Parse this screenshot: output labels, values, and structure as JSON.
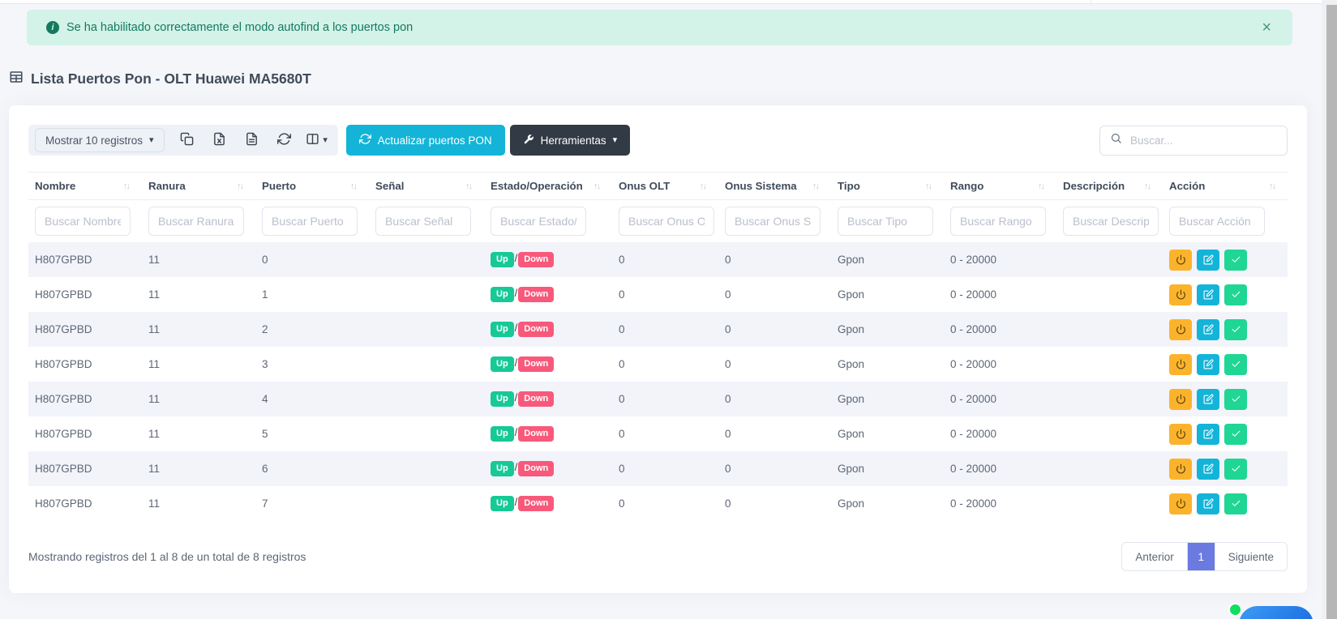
{
  "alert": {
    "message": "Se ha habilitado correctamente el modo autofind a los puertos pon"
  },
  "page_title": "Lista Puertos Pon - OLT Huawei MA5680T",
  "toolbar": {
    "length_menu_label": "Mostrar 10 registros",
    "icon_buttons": [
      {
        "name": "copy-button",
        "icon": "copy-icon"
      },
      {
        "name": "export-excel-button",
        "icon": "excel-file-icon"
      },
      {
        "name": "export-file-button",
        "icon": "file-text-icon"
      },
      {
        "name": "refresh-button",
        "icon": "refresh-icon"
      },
      {
        "name": "columns-visibility-button",
        "icon": "columns-icon",
        "caret": true
      }
    ],
    "update_button_label": "Actualizar puertos PON",
    "tools_button_label": "Herramientas",
    "search_placeholder": "Buscar..."
  },
  "table": {
    "columns": [
      {
        "key": "nombre",
        "label": "Nombre",
        "filter_placeholder": "Buscar Nombre"
      },
      {
        "key": "ranura",
        "label": "Ranura",
        "filter_placeholder": "Buscar Ranura"
      },
      {
        "key": "puerto",
        "label": "Puerto",
        "filter_placeholder": "Buscar Puerto"
      },
      {
        "key": "senal",
        "label": "Señal",
        "filter_placeholder": "Buscar Señal"
      },
      {
        "key": "estado",
        "label": "Estado/Operación",
        "filter_placeholder": "Buscar Estado/Operación",
        "type": "status"
      },
      {
        "key": "onus_olt",
        "label": "Onus OLT",
        "filter_placeholder": "Buscar Onus OLT"
      },
      {
        "key": "onus_sistema",
        "label": "Onus Sistema",
        "filter_placeholder": "Buscar Onus Sistema"
      },
      {
        "key": "tipo",
        "label": "Tipo",
        "filter_placeholder": "Buscar Tipo"
      },
      {
        "key": "rango",
        "label": "Rango",
        "filter_placeholder": "Buscar Rango"
      },
      {
        "key": "descripcion",
        "label": "Descripción",
        "filter_placeholder": "Buscar Descripción"
      },
      {
        "key": "accion",
        "label": "Acción",
        "filter_placeholder": "Buscar Acción",
        "type": "actions"
      }
    ],
    "rows": [
      {
        "nombre": "H807GPBD",
        "ranura": "11",
        "puerto": "0",
        "senal": "",
        "estado": {
          "up": "Up",
          "down": "Down"
        },
        "onus_olt": "0",
        "onus_sistema": "0",
        "tipo": "Gpon",
        "rango": "0 - 20000",
        "descripcion": ""
      },
      {
        "nombre": "H807GPBD",
        "ranura": "11",
        "puerto": "1",
        "senal": "",
        "estado": {
          "up": "Up",
          "down": "Down"
        },
        "onus_olt": "0",
        "onus_sistema": "0",
        "tipo": "Gpon",
        "rango": "0 - 20000",
        "descripcion": ""
      },
      {
        "nombre": "H807GPBD",
        "ranura": "11",
        "puerto": "2",
        "senal": "",
        "estado": {
          "up": "Up",
          "down": "Down"
        },
        "onus_olt": "0",
        "onus_sistema": "0",
        "tipo": "Gpon",
        "rango": "0 - 20000",
        "descripcion": ""
      },
      {
        "nombre": "H807GPBD",
        "ranura": "11",
        "puerto": "3",
        "senal": "",
        "estado": {
          "up": "Up",
          "down": "Down"
        },
        "onus_olt": "0",
        "onus_sistema": "0",
        "tipo": "Gpon",
        "rango": "0 - 20000",
        "descripcion": ""
      },
      {
        "nombre": "H807GPBD",
        "ranura": "11",
        "puerto": "4",
        "senal": "",
        "estado": {
          "up": "Up",
          "down": "Down"
        },
        "onus_olt": "0",
        "onus_sistema": "0",
        "tipo": "Gpon",
        "rango": "0 - 20000",
        "descripcion": ""
      },
      {
        "nombre": "H807GPBD",
        "ranura": "11",
        "puerto": "5",
        "senal": "",
        "estado": {
          "up": "Up",
          "down": "Down"
        },
        "onus_olt": "0",
        "onus_sistema": "0",
        "tipo": "Gpon",
        "rango": "0 - 20000",
        "descripcion": ""
      },
      {
        "nombre": "H807GPBD",
        "ranura": "11",
        "puerto": "6",
        "senal": "",
        "estado": {
          "up": "Up",
          "down": "Down"
        },
        "onus_olt": "0",
        "onus_sistema": "0",
        "tipo": "Gpon",
        "rango": "0 - 20000",
        "descripcion": ""
      },
      {
        "nombre": "H807GPBD",
        "ranura": "11",
        "puerto": "7",
        "senal": "",
        "estado": {
          "up": "Up",
          "down": "Down"
        },
        "onus_olt": "0",
        "onus_sistema": "0",
        "tipo": "Gpon",
        "rango": "0 - 20000",
        "descripcion": ""
      }
    ],
    "action_buttons": [
      {
        "name": "power-toggle-button",
        "icon": "power-icon",
        "color": "#fcb32c",
        "icon_color": "#4b3a0f"
      },
      {
        "name": "edit-port-button",
        "icon": "edit-icon",
        "color": "#14b4d8",
        "icon_color": "#ffffff"
      },
      {
        "name": "confirm-port-button",
        "icon": "check-icon",
        "color": "#1fd695",
        "icon_color": "#ffffff"
      }
    ]
  },
  "footer": {
    "records_info": "Mostrando registros del 1 al 8 de un total de 8 registros",
    "pagination": {
      "prev": "Anterior",
      "current_page": "1",
      "next": "Siguiente"
    }
  },
  "glyphs": {
    "caret_down": "▾",
    "sort": "↑↓",
    "status_separator": "/",
    "close": "×",
    "info": "i"
  },
  "colors": {
    "accent_cyan": "#13b4d8",
    "dark_button": "#313a45",
    "badge_up": "#16c995",
    "badge_down": "#f8597b",
    "action_power": "#fcb32c",
    "action_edit": "#14b4d8",
    "action_confirm": "#1fd695",
    "pagination_active": "#6b7ae0",
    "alert_bg": "#d3f2e8",
    "alert_text": "#15795e",
    "chat_status": "#10df5f"
  }
}
